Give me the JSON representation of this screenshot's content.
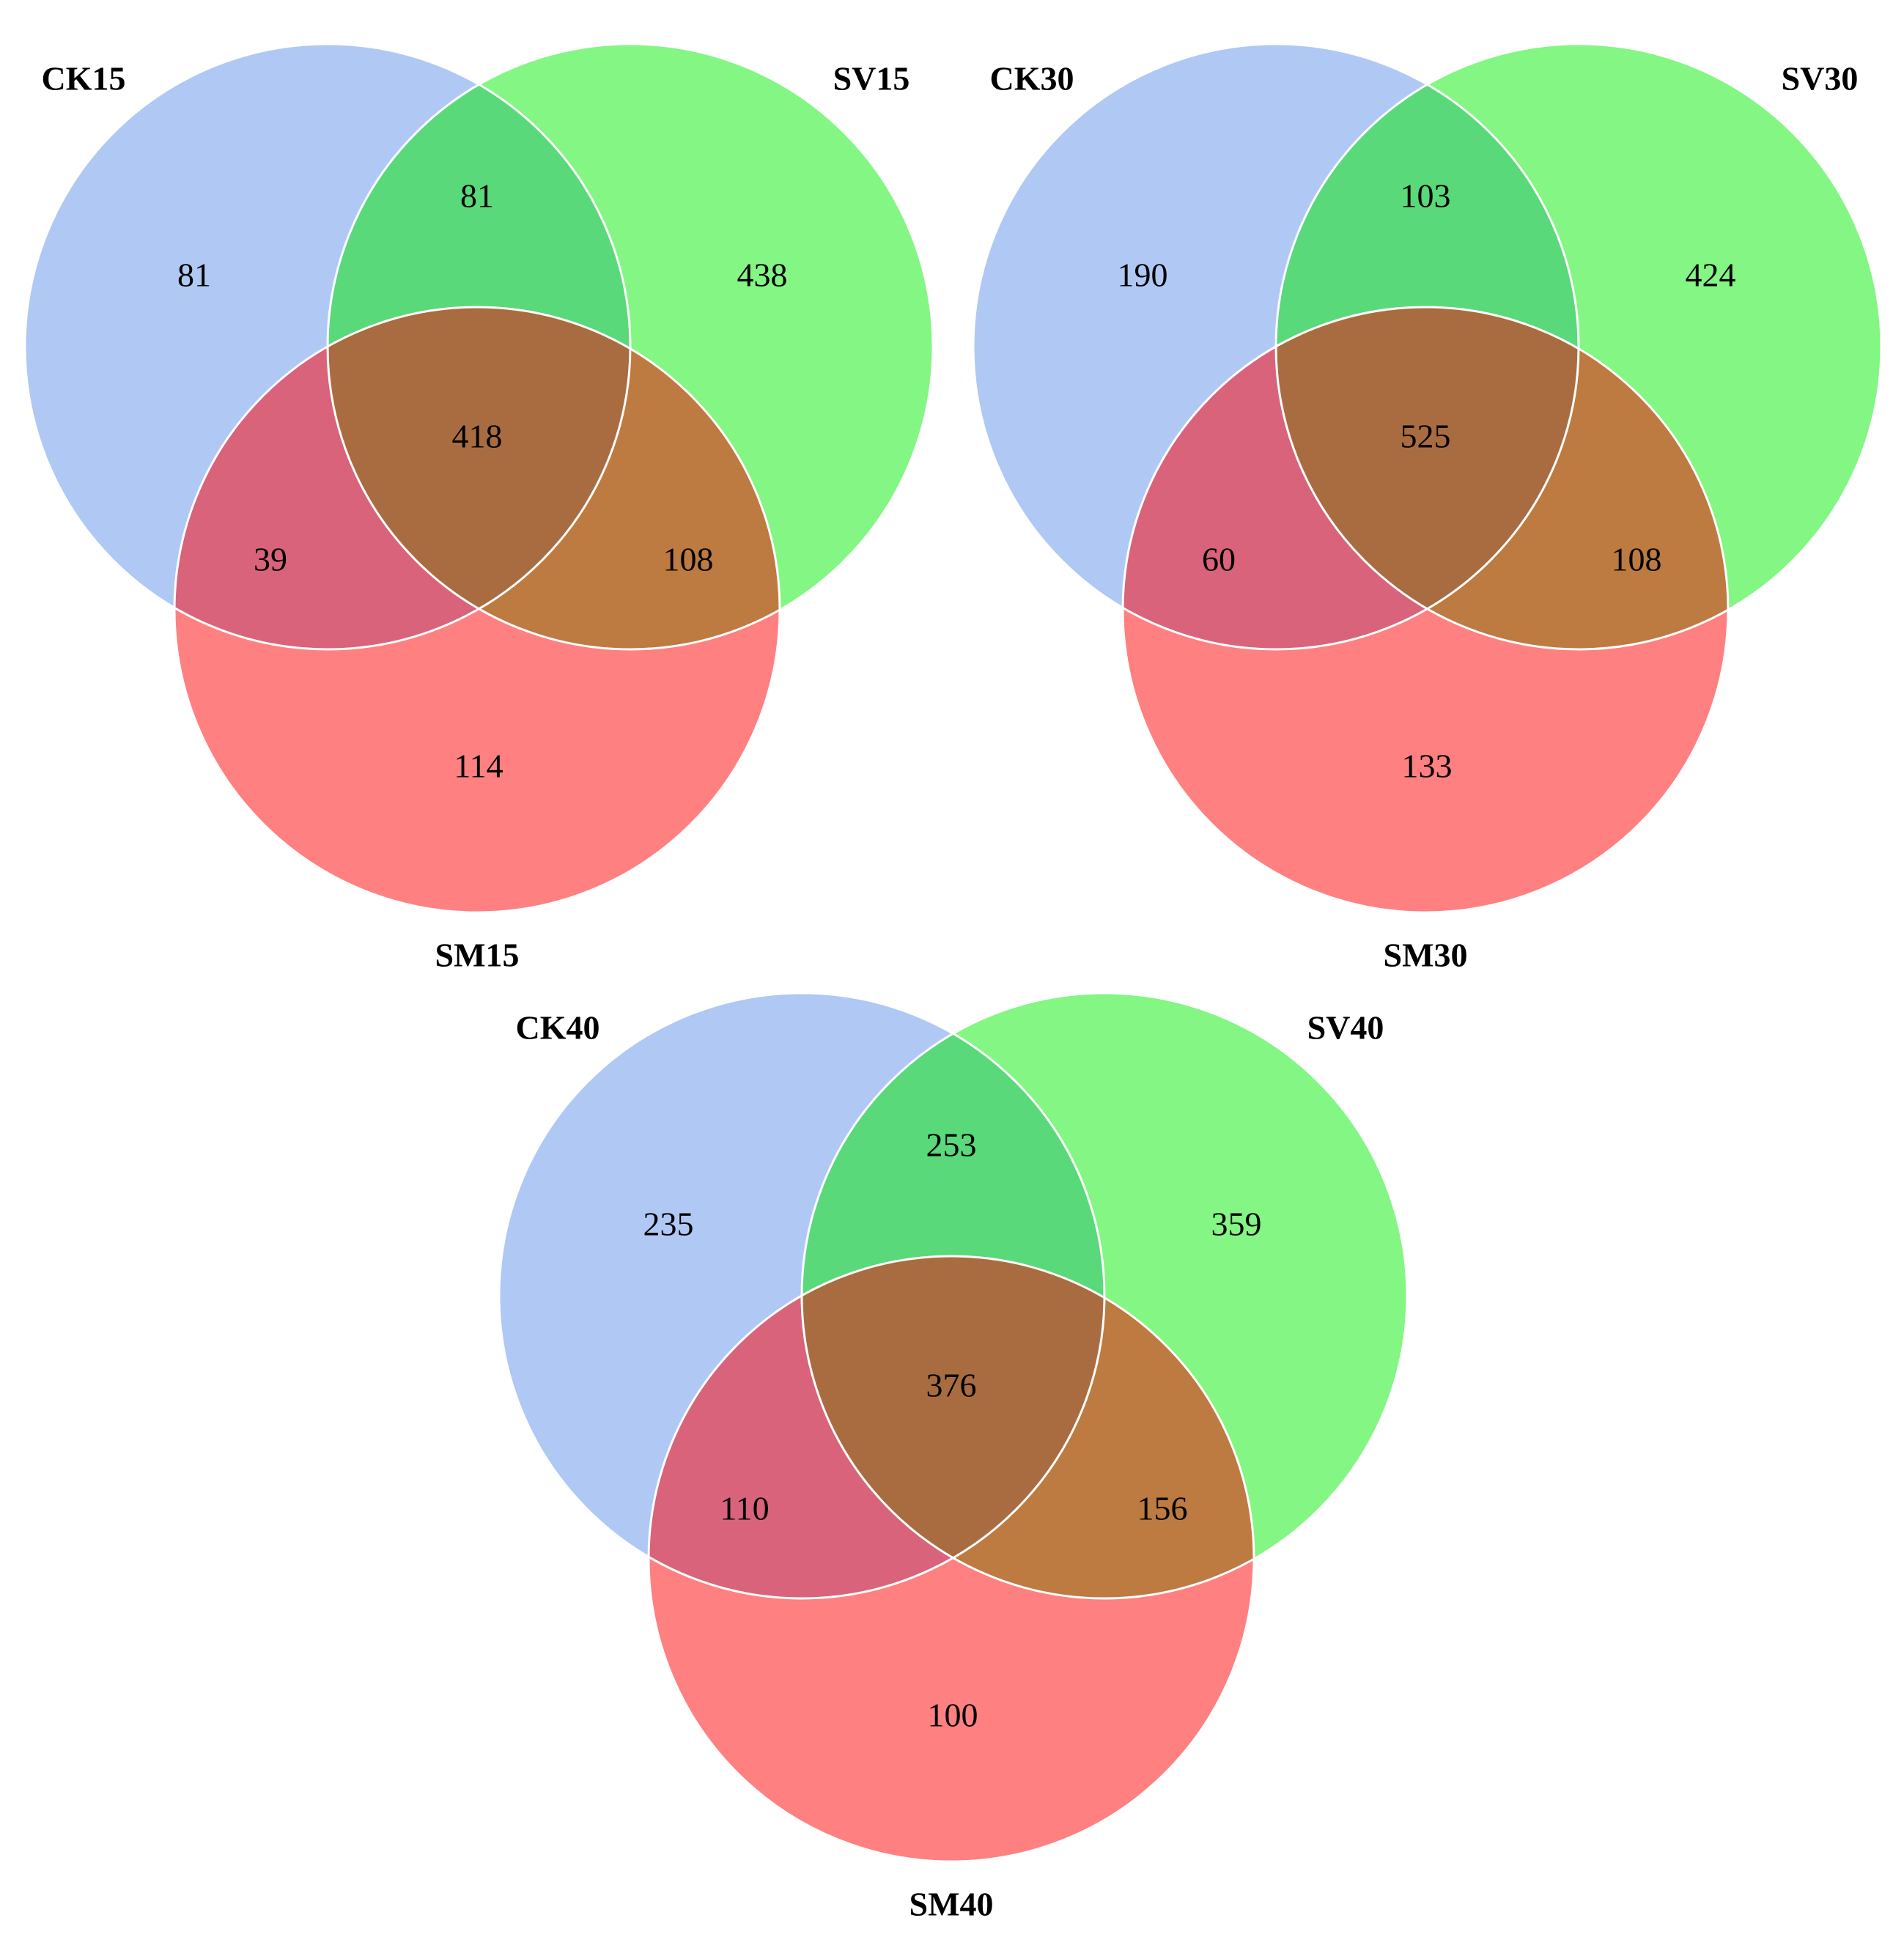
{
  "colors": {
    "set_a": "#b0c8f4",
    "set_b": "#83f683",
    "set_c": "#fe8080",
    "a_b": "#59d979",
    "a_c": "#d9637a",
    "b_c": "#bd7a41",
    "a_b_c": "#a96c40",
    "outline": "#ffffff",
    "text": "#000000"
  },
  "diagrams": [
    {
      "labels": {
        "a": "CK15",
        "b": "SV15",
        "c": "SM15"
      },
      "counts": {
        "a_only": "81",
        "b_only": "438",
        "c_only": "114",
        "ab": "81",
        "ac": "39",
        "bc": "108",
        "abc": "418"
      }
    },
    {
      "labels": {
        "a": "CK30",
        "b": "SV30",
        "c": "SM30"
      },
      "counts": {
        "a_only": "190",
        "b_only": "424",
        "c_only": "133",
        "ab": "103",
        "ac": "60",
        "bc": "108",
        "abc": "525"
      }
    },
    {
      "labels": {
        "a": "CK40",
        "b": "SV40",
        "c": "SM40"
      },
      "counts": {
        "a_only": "235",
        "b_only": "359",
        "c_only": "100",
        "ab": "253",
        "ac": "110",
        "bc": "156",
        "abc": "376"
      }
    }
  ]
}
